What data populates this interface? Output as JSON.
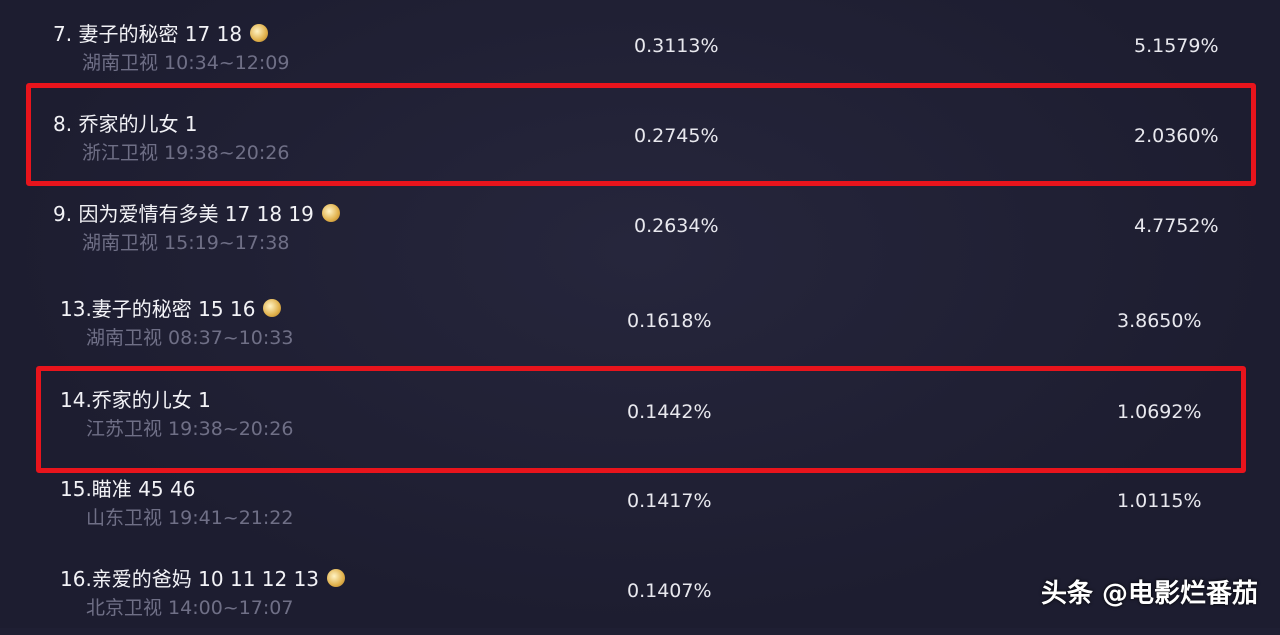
{
  "rows": [
    {
      "title": "7. 妻子的秘密 17 18",
      "channel_time": "湖南卫视 10:34~12:09",
      "share1": "0.3113%",
      "share2": "5.1579%",
      "coin": true
    },
    {
      "title": "8. 乔家的儿女 1",
      "channel_time": "浙江卫视 19:38~20:26",
      "share1": "0.2745%",
      "share2": "2.0360%",
      "coin": false,
      "highlighted": true
    },
    {
      "title": "9. 因为爱情有多美 17 18 19",
      "channel_time": "湖南卫视 15:19~17:38",
      "share1": "0.2634%",
      "share2": "4.7752%",
      "coin": true
    },
    {
      "title": "13.妻子的秘密 15 16",
      "channel_time": "湖南卫视 08:37~10:33",
      "share1": "0.1618%",
      "share2": "3.8650%",
      "coin": true
    },
    {
      "title": "14.乔家的儿女 1",
      "channel_time": "江苏卫视 19:38~20:26",
      "share1": "0.1442%",
      "share2": "1.0692%",
      "coin": false,
      "highlighted": true
    },
    {
      "title": "15.瞄准 45 46",
      "channel_time": "山东卫视 19:41~21:22",
      "share1": "0.1417%",
      "share2": "1.0115%",
      "coin": false
    },
    {
      "title": "16.亲爱的爸妈 10 11 12 13",
      "channel_time": "北京卫视 14:00~17:07",
      "share1": "0.1407%",
      "share2": "",
      "coin": true
    }
  ],
  "watermark": "头条 @电影烂番茄",
  "colors": {
    "highlight": "#e8141c",
    "background": "#1f1f33"
  }
}
